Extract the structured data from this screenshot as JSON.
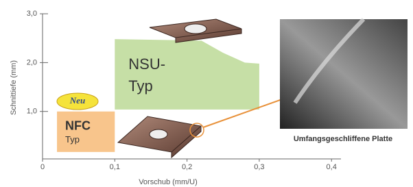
{
  "chart_data": {
    "type": "region",
    "x_label": "Vorschub (mm/U)",
    "y_label": "Schnittiefe (mm)",
    "xlim": [
      0,
      0.45
    ],
    "ylim": [
      0,
      3.2
    ],
    "xticks": [
      0,
      {
        "value": 0.1,
        "label": "0,1"
      },
      {
        "value": 0.2,
        "label": "0,2"
      },
      {
        "value": 0.3,
        "label": "0,3"
      },
      {
        "value": 0.4,
        "label": "0,4"
      }
    ],
    "yticks": [
      {
        "value": 1,
        "label": "1,0"
      },
      {
        "value": 2,
        "label": "2,0"
      },
      {
        "value": 3,
        "label": "3,0"
      }
    ],
    "regions": [
      {
        "lines": [
          "NSU-",
          "Typ"
        ],
        "color": "#c6dfa6",
        "x": [
          0.1,
          0.1,
          0.22,
          0.25,
          0.28,
          0.3,
          0.3
        ],
        "y": [
          1.04,
          2.48,
          2.45,
          2.2,
          2.0,
          1.98,
          1.04
        ]
      },
      {
        "lines": [
          "NFC",
          "Typ"
        ],
        "color": "#f8c58c",
        "x": [
          0.02,
          0.02,
          0.1,
          0.1
        ],
        "y": [
          0.17,
          1.0,
          1.0,
          0.17
        ]
      }
    ],
    "badge": "Neu",
    "photo_caption": "Umfangsgeschliffene Platte"
  }
}
